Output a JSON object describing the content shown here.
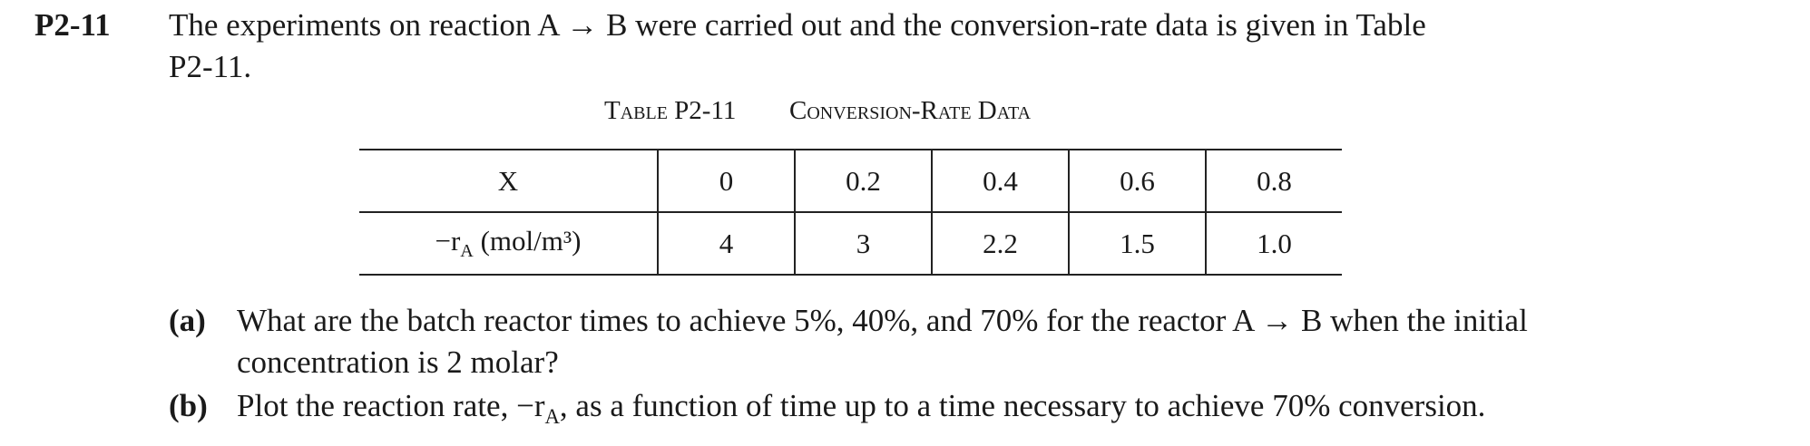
{
  "problem": {
    "id": "P2-11",
    "statement": [
      "The experiments on reaction A → B were carried out and the conversion-rate data is given in Table",
      "P2-11."
    ],
    "table": {
      "label": "Table P2-11",
      "title": "Conversion-Rate Data",
      "rows": [
        {
          "label": "X",
          "cells": [
            "0",
            "0.2",
            "0.4",
            "0.6",
            "0.8"
          ]
        },
        {
          "label": {
            "symbol": "−r",
            "subscript": "A",
            "unit": "(mol/m³)"
          },
          "cells": [
            "4",
            "3",
            "2.2",
            "1.5",
            "1.0"
          ]
        }
      ]
    },
    "parts": [
      {
        "label": "(a)",
        "lines": [
          "What are the batch reactor times to achieve 5%, 40%, and 70% for the reactor A → B when the initial",
          "concentration is 2 molar?"
        ]
      },
      {
        "label": "(b)",
        "segments": [
          "Plot the reaction rate, −r",
          "A",
          ", as a function of time up to a time necessary to achieve 70% conversion."
        ]
      }
    ]
  }
}
